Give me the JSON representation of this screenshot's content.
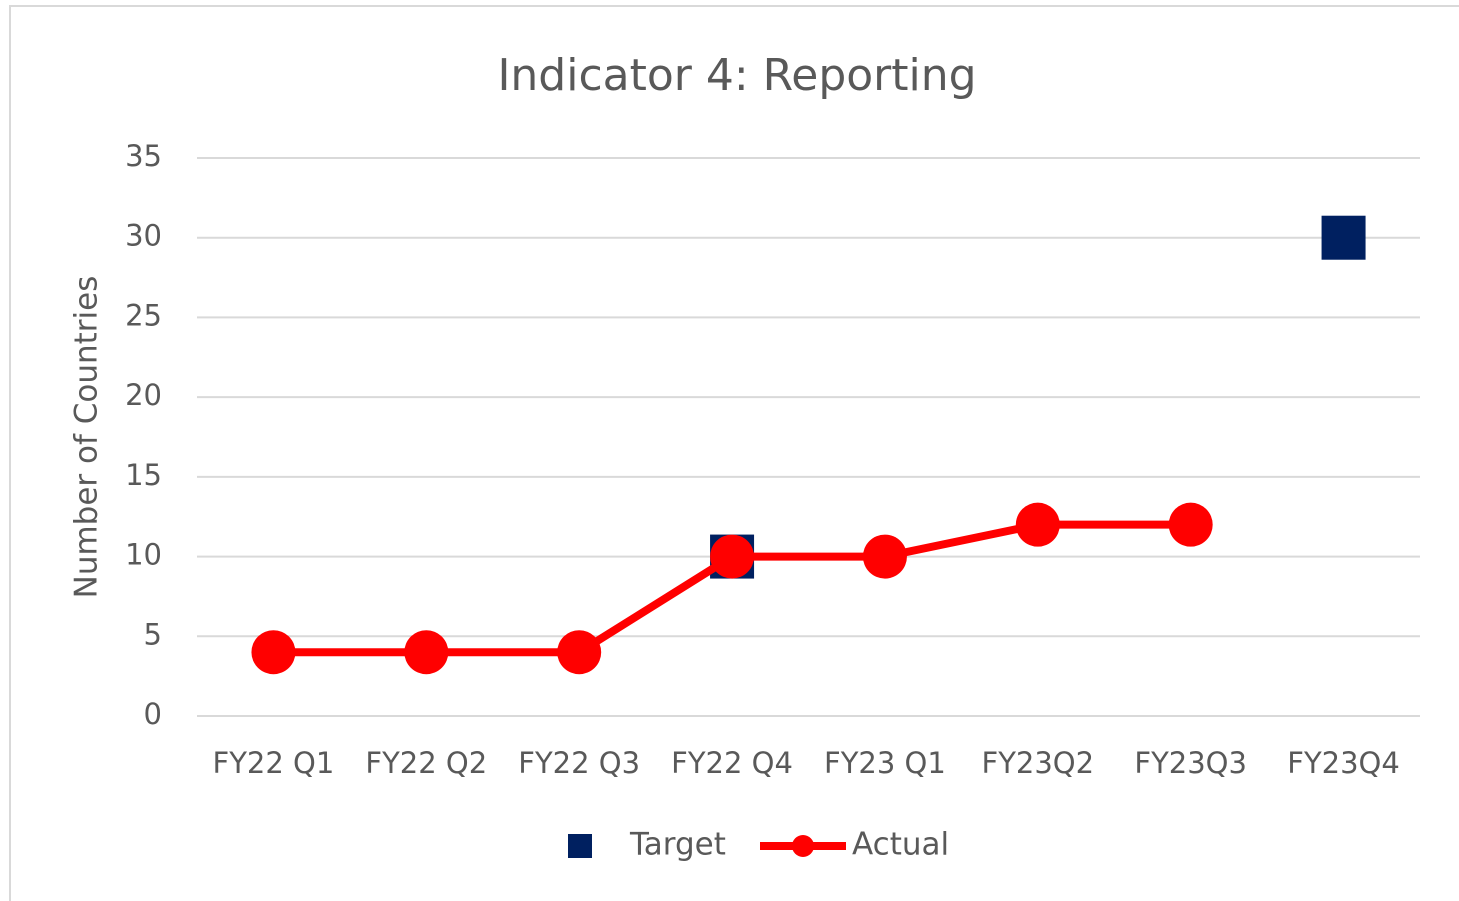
{
  "chart_data": {
    "type": "line",
    "title": "Indicator 4: Reporting",
    "y_label": "Number of Countries",
    "categories": [
      "FY22 Q1",
      "FY22 Q2",
      "FY22 Q3",
      "FY22 Q4",
      "FY23 Q1",
      "FY23Q2",
      "FY23Q3",
      "FY23Q4"
    ],
    "series": [
      {
        "name": "Target",
        "color": "#002060",
        "marker": "square",
        "show_line": false,
        "values": [
          null,
          null,
          null,
          10,
          null,
          null,
          null,
          30
        ]
      },
      {
        "name": "Actual",
        "color": "#ff0000",
        "marker": "circle",
        "show_line": true,
        "values": [
          4,
          4,
          4,
          10,
          10,
          12,
          12,
          null
        ]
      }
    ],
    "ylim": [
      0,
      35
    ],
    "yticks": [
      0,
      5,
      10,
      15,
      20,
      25,
      30,
      35
    ],
    "grid": true,
    "legend": "bottom"
  }
}
